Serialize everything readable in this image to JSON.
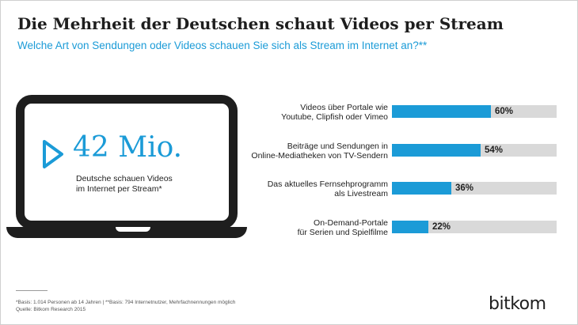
{
  "header": {
    "title": "Die Mehrheit der Deutschen schaut Videos per Stream",
    "subtitle": "Welche Art von Sendungen oder Videos schauen Sie sich als Stream im Internet an?**"
  },
  "highlight": {
    "number": "42 Mio.",
    "caption_lines": [
      "Deutsche schauen Videos",
      "im Internet per Stream*"
    ],
    "icon": "play-icon"
  },
  "chart_data": {
    "type": "bar",
    "orientation": "horizontal",
    "categories": [
      "Videos über Portale wie Youtube, Clipfish oder Vimeo",
      "Beiträge und Sendungen in Online-Mediatheken von TV-Sendern",
      "Das aktuelles Fernsehprogramm als Livestream",
      "On-Demand-Portale für Serien und Spielfilme"
    ],
    "category_lines": [
      [
        "Videos über Portale wie",
        "Youtube, Clipfish oder Vimeo"
      ],
      [
        "Beiträge und Sendungen in",
        "Online-Mediatheken von TV-Sendern"
      ],
      [
        "Das aktuelles Fernsehprogramm",
        "als Livestream"
      ],
      [
        "On-Demand-Portale",
        "für Serien und Spielfilme"
      ]
    ],
    "values": [
      60,
      54,
      36,
      22
    ],
    "value_labels": [
      "60%",
      "54%",
      "36%",
      "22%"
    ],
    "unit": "%",
    "xlim": [
      0,
      100
    ],
    "colors": {
      "bar": "#1b9bd7",
      "track": "#d9d9d9"
    }
  },
  "footer": {
    "notes": [
      "*Basis: 1.014 Personen ab 14 Jahren | **Basis: 794 Internetnutzer, Mehrfachnennungen möglich",
      "Quelle: Bitkom Research 2015"
    ],
    "logo": "bitkom"
  },
  "colors": {
    "accent": "#1b9bd7",
    "text": "#1e1e1e"
  }
}
